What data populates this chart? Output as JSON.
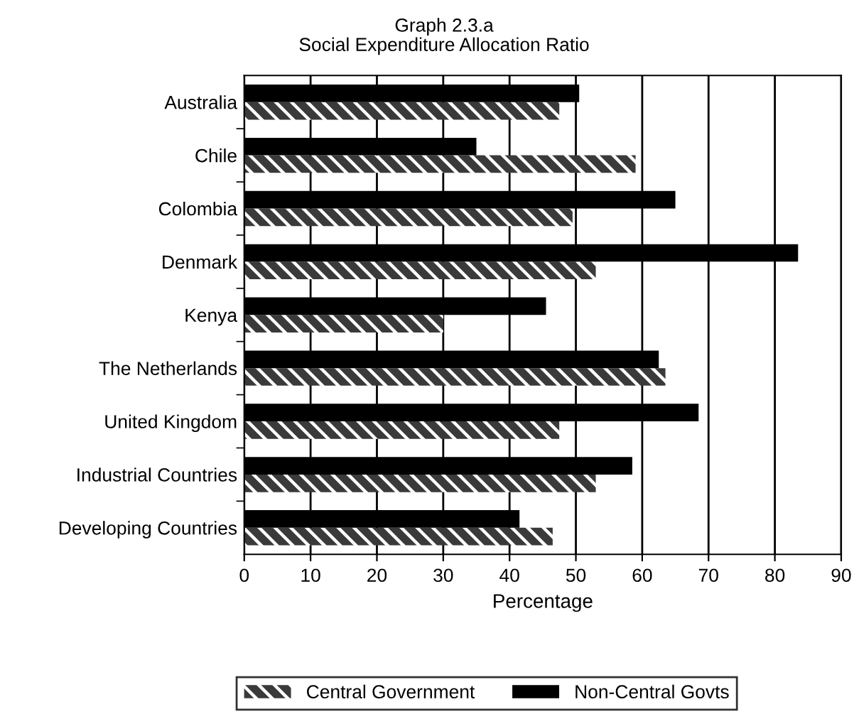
{
  "chart_data": {
    "type": "bar",
    "orientation": "horizontal",
    "title": "Graph 2.3.a",
    "subtitle": "Social Expenditure Allocation Ratio",
    "xlabel": "Percentage",
    "categories": [
      "Australia",
      "Chile",
      "Colombia",
      "Denmark",
      "Kenya",
      "The Netherlands",
      "United Kingdom",
      "Industrial Countries",
      "Developing Countries"
    ],
    "series": [
      {
        "name": "Central Government",
        "color": "#3a3a3a",
        "values": [
          47.5,
          59,
          49.5,
          53,
          30,
          63.5,
          47.5,
          53,
          46.5
        ]
      },
      {
        "name": "Non-Central Govts",
        "color": "#000000",
        "values": [
          50.5,
          35,
          65,
          83.5,
          45.5,
          62.5,
          68.5,
          58.5,
          41.5
        ]
      }
    ],
    "xlim": [
      0,
      90
    ],
    "xticks": [
      0,
      10,
      20,
      30,
      40,
      50,
      60,
      70,
      80,
      90
    ],
    "grid": "x",
    "legend": "bottom"
  }
}
